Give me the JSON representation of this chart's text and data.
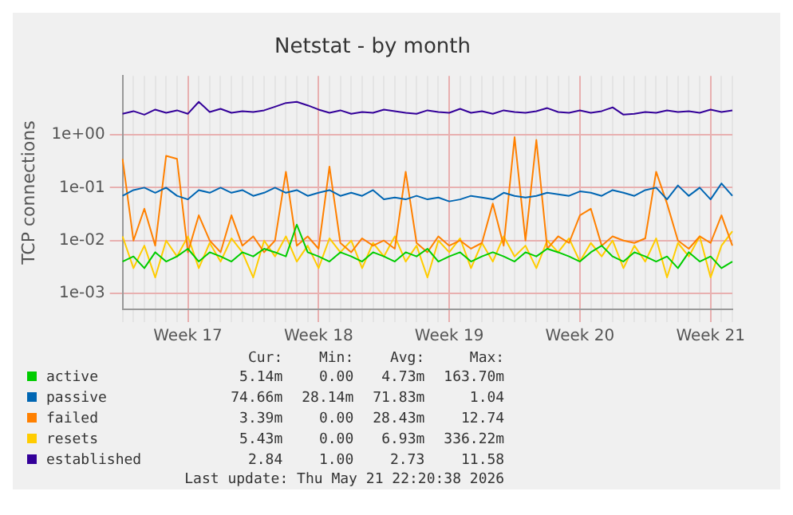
{
  "chart_data": {
    "type": "line",
    "title": "Netstat - by month",
    "ylabel": "TCP connections",
    "log": true,
    "grid": true,
    "legend": "bottom",
    "marker": "none",
    "line_style": "solid",
    "categories": [
      null,
      null,
      null,
      null,
      null,
      null,
      "Week 17",
      null,
      null,
      null,
      null,
      null,
      null,
      null,
      null,
      null,
      null,
      null,
      "Week 18",
      null,
      null,
      null,
      null,
      null,
      null,
      null,
      null,
      null,
      null,
      null,
      "Week 19",
      null,
      null,
      null,
      null,
      null,
      null,
      null,
      null,
      null,
      null,
      null,
      "Week 20",
      null,
      null,
      null,
      null,
      null,
      null,
      null,
      null,
      null,
      null,
      null,
      "Week 21",
      null,
      null
    ],
    "ylim": [
      0.0005,
      13
    ],
    "yticks": [
      {
        "value": 0.001,
        "label": "1e-03"
      },
      {
        "value": 0.01,
        "label": "1e-02"
      },
      {
        "value": 0.1,
        "label": "1e-01"
      },
      {
        "value": 1,
        "label": "1e+00"
      }
    ],
    "series": [
      {
        "name": "active",
        "color": "#00cc00",
        "values": [
          0.004,
          0.005,
          0.003,
          0.006,
          0.004,
          0.005,
          0.007,
          0.004,
          0.006,
          0.005,
          0.004,
          0.006,
          0.005,
          0.007,
          0.006,
          0.005,
          0.02,
          0.006,
          0.005,
          0.004,
          0.006,
          0.005,
          0.004,
          0.006,
          0.005,
          0.004,
          0.006,
          0.005,
          0.007,
          0.004,
          0.005,
          0.006,
          0.004,
          0.005,
          0.006,
          0.005,
          0.004,
          0.006,
          0.005,
          0.007,
          0.006,
          0.005,
          0.004,
          0.006,
          0.008,
          0.005,
          0.004,
          0.006,
          0.005,
          0.004,
          0.005,
          0.003,
          0.006,
          0.004,
          0.005,
          0.003,
          0.004
        ]
      },
      {
        "name": "passive",
        "color": "#0066b3",
        "values": [
          0.07,
          0.09,
          0.1,
          0.08,
          0.1,
          0.07,
          0.06,
          0.09,
          0.08,
          0.1,
          0.08,
          0.09,
          0.07,
          0.08,
          0.1,
          0.08,
          0.09,
          0.07,
          0.08,
          0.09,
          0.07,
          0.08,
          0.07,
          0.09,
          0.06,
          0.065,
          0.06,
          0.07,
          0.06,
          0.065,
          0.055,
          0.06,
          0.07,
          0.065,
          0.06,
          0.08,
          0.07,
          0.065,
          0.07,
          0.08,
          0.075,
          0.07,
          0.085,
          0.08,
          0.07,
          0.09,
          0.08,
          0.07,
          0.09,
          0.1,
          0.06,
          0.11,
          0.07,
          0.1,
          0.06,
          0.12,
          0.07
        ]
      },
      {
        "name": "failed",
        "color": "#ff8000",
        "values": [
          0.35,
          0.01,
          0.04,
          0.008,
          0.4,
          0.35,
          0.006,
          0.03,
          0.01,
          0.006,
          0.03,
          0.008,
          0.012,
          0.006,
          0.01,
          0.2,
          0.008,
          0.012,
          0.007,
          0.25,
          0.009,
          0.006,
          0.011,
          0.008,
          0.01,
          0.007,
          0.2,
          0.009,
          0.006,
          0.012,
          0.008,
          0.01,
          0.007,
          0.009,
          0.05,
          0.008,
          0.9,
          0.01,
          0.8,
          0.007,
          0.012,
          0.009,
          0.03,
          0.04,
          0.008,
          0.012,
          0.01,
          0.009,
          0.011,
          0.2,
          0.05,
          0.01,
          0.007,
          0.012,
          0.009,
          0.03,
          0.008
        ]
      },
      {
        "name": "resets",
        "color": "#ffcc00",
        "values": [
          0.012,
          0.003,
          0.008,
          0.002,
          0.01,
          0.005,
          0.012,
          0.003,
          0.009,
          0.004,
          0.011,
          0.006,
          0.002,
          0.01,
          0.005,
          0.012,
          0.004,
          0.008,
          0.003,
          0.011,
          0.006,
          0.01,
          0.003,
          0.009,
          0.005,
          0.012,
          0.004,
          0.008,
          0.002,
          0.01,
          0.006,
          0.011,
          0.003,
          0.009,
          0.004,
          0.012,
          0.005,
          0.008,
          0.003,
          0.01,
          0.006,
          0.011,
          0.004,
          0.009,
          0.005,
          0.01,
          0.003,
          0.008,
          0.004,
          0.011,
          0.002,
          0.009,
          0.005,
          0.012,
          0.002,
          0.008,
          0.015
        ]
      },
      {
        "name": "established",
        "color": "#330099",
        "values": [
          2.5,
          2.8,
          2.4,
          3.0,
          2.6,
          2.9,
          2.5,
          4.2,
          2.7,
          3.1,
          2.6,
          2.8,
          2.7,
          2.9,
          3.4,
          4.0,
          4.2,
          3.6,
          3.0,
          2.6,
          2.9,
          2.5,
          2.7,
          2.6,
          3.0,
          2.8,
          2.6,
          2.5,
          2.9,
          2.7,
          2.6,
          3.1,
          2.6,
          2.8,
          2.5,
          2.9,
          2.7,
          2.6,
          2.8,
          3.2,
          2.7,
          2.6,
          2.9,
          2.6,
          2.8,
          3.3,
          2.4,
          2.5,
          2.7,
          2.6,
          2.9,
          2.7,
          2.8,
          2.6,
          3.0,
          2.7,
          2.9
        ]
      }
    ],
    "annotations": [
      "Cur:",
      "Min:",
      "Avg:",
      "Max:",
      "5.14m",
      "0.00",
      "4.73m",
      "163.70m",
      "74.66m",
      "28.14m",
      "71.83m",
      "1.04",
      "3.39m",
      "0.00",
      "28.43m",
      "12.74",
      "5.43m",
      "0.00",
      "6.93m",
      "336.22m",
      "2.84",
      "1.00",
      "2.73",
      "11.58",
      "Last update: Thu May 21 22:20:38 2026"
    ]
  }
}
